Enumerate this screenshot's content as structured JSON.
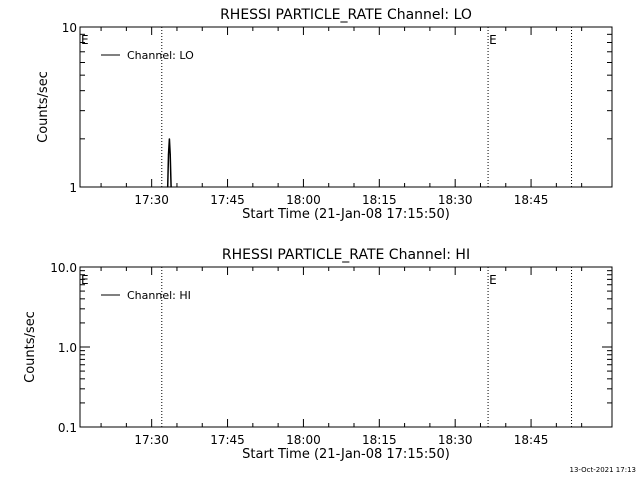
{
  "footer": {
    "timestamp": "13-Oct-2021 17:13"
  },
  "chart_data": [
    {
      "type": "line",
      "title": "RHESSI PARTICLE_RATE Channel: LO",
      "xlabel": "Start Time (21-Jan-08 17:15:50)",
      "ylabel": "Counts/sec",
      "y_scale": "log",
      "ylim": [
        1,
        10
      ],
      "y_ticks": [
        {
          "value": 1,
          "label": "1"
        },
        {
          "value": 10,
          "label": "10"
        }
      ],
      "xlim": [
        "17:15:50",
        "19:01:00"
      ],
      "x_ticks": [
        "17:30",
        "17:45",
        "18:00",
        "18:15",
        "18:30",
        "18:45"
      ],
      "legend": {
        "position": "top-left",
        "entries": [
          "Channel: LO"
        ]
      },
      "grid": false,
      "vertical_markers": [
        {
          "x": "17:15:50",
          "label": "E"
        },
        {
          "x": "17:32:00",
          "label": ""
        },
        {
          "x": "18:36:30",
          "label": "E"
        },
        {
          "x": "18:53:00",
          "label": ""
        }
      ],
      "series": [
        {
          "name": "Channel: LO",
          "points": [
            {
              "x": "17:33:10",
              "y": 1
            },
            {
              "x": "17:33:20",
              "y": 1.6
            },
            {
              "x": "17:33:30",
              "y": 2.0
            },
            {
              "x": "17:33:40",
              "y": 1.6
            },
            {
              "x": "17:33:50",
              "y": 1
            }
          ]
        }
      ]
    },
    {
      "type": "line",
      "title": "RHESSI PARTICLE_RATE Channel: HI",
      "xlabel": "Start Time (21-Jan-08 17:15:50)",
      "ylabel": "Counts/sec",
      "y_scale": "log",
      "ylim": [
        0.1,
        10
      ],
      "y_ticks": [
        {
          "value": 0.1,
          "label": "0.1"
        },
        {
          "value": 1,
          "label": "1.0"
        },
        {
          "value": 10,
          "label": "10.0"
        }
      ],
      "xlim": [
        "17:15:50",
        "19:01:00"
      ],
      "x_ticks": [
        "17:30",
        "17:45",
        "18:00",
        "18:15",
        "18:30",
        "18:45"
      ],
      "legend": {
        "position": "top-left",
        "entries": [
          "Channel: HI"
        ]
      },
      "grid": false,
      "vertical_markers": [
        {
          "x": "17:15:50",
          "label": "E"
        },
        {
          "x": "17:32:00",
          "label": ""
        },
        {
          "x": "18:36:30",
          "label": "E"
        },
        {
          "x": "18:53:00",
          "label": ""
        }
      ],
      "series": [
        {
          "name": "Channel: HI",
          "points": []
        }
      ]
    }
  ]
}
